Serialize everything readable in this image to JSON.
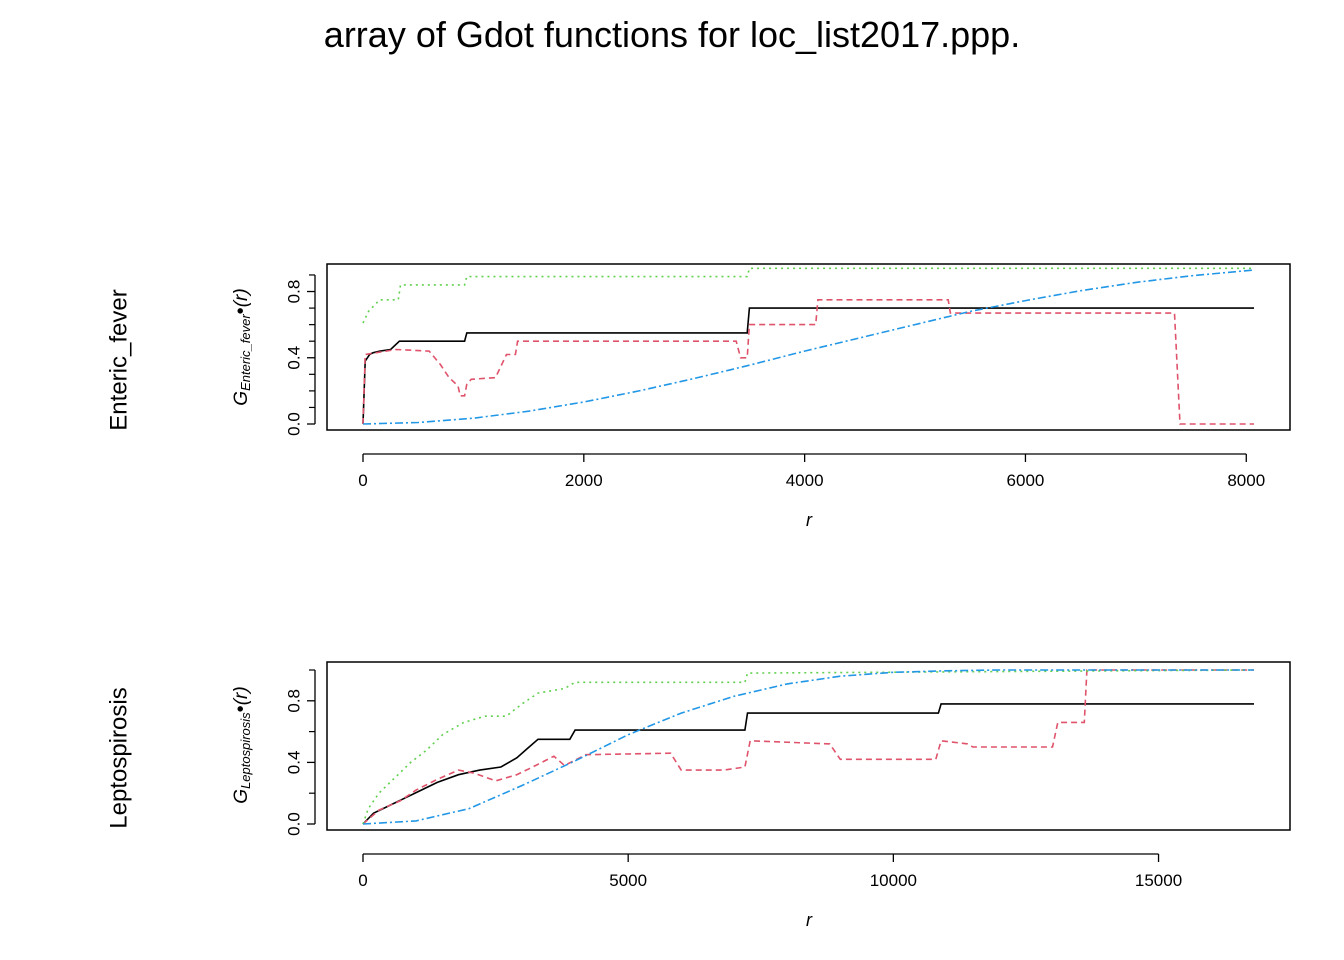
{
  "title": "array of Gdot functions for loc_list2017.ppp.",
  "chart_data": [
    {
      "type": "line",
      "row_label": "Enteric_fever",
      "ylabel": {
        "base": "G",
        "subscript": "Enteric_fever",
        "bullet": "•",
        "arg": "(r)"
      },
      "xlabel": "r",
      "xlim": [
        0,
        8100
      ],
      "ylim": [
        0,
        0.95
      ],
      "xticks": [
        0,
        2000,
        4000,
        6000,
        8000
      ],
      "xtick_labels": [
        "0",
        "2000",
        "4000",
        "6000",
        "8000"
      ],
      "yticks": [
        0,
        0.4,
        0.8
      ],
      "ytick_labels": [
        "0.0",
        "0.4",
        "0.8"
      ],
      "series": [
        {
          "color": "#000000",
          "dash": "",
          "points": [
            [
              0,
              0
            ],
            [
              20,
              0.38
            ],
            [
              60,
              0.42
            ],
            [
              90,
              0.43
            ],
            [
              150,
              0.44
            ],
            [
              250,
              0.45
            ],
            [
              330,
              0.5
            ],
            [
              920,
              0.5
            ],
            [
              940,
              0.55
            ],
            [
              3480,
              0.55
            ],
            [
              3500,
              0.7
            ],
            [
              8070,
              0.7
            ]
          ]
        },
        {
          "color": "#DF536B",
          "dash": "6,4",
          "points": [
            [
              0,
              0
            ],
            [
              20,
              0.42
            ],
            [
              300,
              0.45
            ],
            [
              600,
              0.44
            ],
            [
              700,
              0.36
            ],
            [
              780,
              0.28
            ],
            [
              860,
              0.23
            ],
            [
              880,
              0.17
            ],
            [
              920,
              0.17
            ],
            [
              940,
              0.24
            ],
            [
              980,
              0.27
            ],
            [
              1200,
              0.28
            ],
            [
              1300,
              0.42
            ],
            [
              1380,
              0.42
            ],
            [
              1400,
              0.5
            ],
            [
              3380,
              0.5
            ],
            [
              3420,
              0.4
            ],
            [
              3480,
              0.4
            ],
            [
              3500,
              0.6
            ],
            [
              4100,
              0.6
            ],
            [
              4120,
              0.75
            ],
            [
              5300,
              0.75
            ],
            [
              5320,
              0.67
            ],
            [
              7350,
              0.67
            ],
            [
              7400,
              0.0
            ],
            [
              8070,
              0.0
            ]
          ]
        },
        {
          "color": "#61D04F",
          "dash": "2,4",
          "points": [
            [
              0,
              0.61
            ],
            [
              50,
              0.68
            ],
            [
              150,
              0.75
            ],
            [
              320,
              0.75
            ],
            [
              340,
              0.84
            ],
            [
              920,
              0.84
            ],
            [
              940,
              0.89
            ],
            [
              3480,
              0.89
            ],
            [
              3500,
              0.94
            ],
            [
              8070,
              0.94
            ]
          ]
        },
        {
          "color": "#2297E6",
          "dash": "8,3,2,3",
          "points": [
            [
              0,
              0
            ],
            [
              500,
              0.009
            ],
            [
              1000,
              0.035
            ],
            [
              1500,
              0.077
            ],
            [
              2000,
              0.133
            ],
            [
              2500,
              0.2
            ],
            [
              3000,
              0.275
            ],
            [
              3500,
              0.355
            ],
            [
              4000,
              0.44
            ],
            [
              4500,
              0.52
            ],
            [
              5000,
              0.6
            ],
            [
              5500,
              0.68
            ],
            [
              6000,
              0.745
            ],
            [
              6500,
              0.805
            ],
            [
              7000,
              0.855
            ],
            [
              7500,
              0.895
            ],
            [
              8070,
              0.93
            ]
          ]
        }
      ]
    },
    {
      "type": "line",
      "row_label": "Leptospirosis",
      "ylabel": {
        "base": "G",
        "subscript": "Leptospirosis",
        "bullet": "•",
        "arg": "(r)"
      },
      "xlabel": "r",
      "xlim": [
        0,
        17000
      ],
      "ylim": [
        0,
        1.03
      ],
      "xticks": [
        0,
        5000,
        10000,
        15000
      ],
      "xtick_labels": [
        "0",
        "5000",
        "10000",
        "15000"
      ],
      "yticks": [
        0,
        0.4,
        0.8
      ],
      "ytick_labels": [
        "0.0",
        "0.4",
        "0.8"
      ],
      "series": [
        {
          "color": "#000000",
          "dash": "",
          "points": [
            [
              0,
              0
            ],
            [
              200,
              0.07
            ],
            [
              500,
              0.12
            ],
            [
              800,
              0.17
            ],
            [
              1100,
              0.22
            ],
            [
              1400,
              0.27
            ],
            [
              1800,
              0.32
            ],
            [
              2200,
              0.35
            ],
            [
              2600,
              0.37
            ],
            [
              2900,
              0.43
            ],
            [
              3100,
              0.49
            ],
            [
              3300,
              0.55
            ],
            [
              3900,
              0.55
            ],
            [
              4000,
              0.61
            ],
            [
              7200,
              0.61
            ],
            [
              7250,
              0.72
            ],
            [
              10850,
              0.72
            ],
            [
              10900,
              0.78
            ],
            [
              16800,
              0.78
            ]
          ]
        },
        {
          "color": "#DF536B",
          "dash": "6,4",
          "points": [
            [
              0,
              0
            ],
            [
              300,
              0.09
            ],
            [
              700,
              0.15
            ],
            [
              1000,
              0.22
            ],
            [
              1400,
              0.29
            ],
            [
              1800,
              0.35
            ],
            [
              2100,
              0.33
            ],
            [
              2500,
              0.28
            ],
            [
              2900,
              0.32
            ],
            [
              3200,
              0.37
            ],
            [
              3600,
              0.44
            ],
            [
              3800,
              0.38
            ],
            [
              4200,
              0.45
            ],
            [
              5800,
              0.46
            ],
            [
              6000,
              0.35
            ],
            [
              6800,
              0.35
            ],
            [
              7200,
              0.37
            ],
            [
              7300,
              0.54
            ],
            [
              8800,
              0.52
            ],
            [
              9000,
              0.42
            ],
            [
              10800,
              0.42
            ],
            [
              10900,
              0.54
            ],
            [
              11400,
              0.52
            ],
            [
              11500,
              0.5
            ],
            [
              13000,
              0.5
            ],
            [
              13100,
              0.66
            ],
            [
              13600,
              0.66
            ],
            [
              13650,
              1.0
            ],
            [
              16800,
              1.0
            ]
          ]
        },
        {
          "color": "#61D04F",
          "dash": "2,4",
          "points": [
            [
              0,
              0
            ],
            [
              100,
              0.1
            ],
            [
              300,
              0.2
            ],
            [
              600,
              0.3
            ],
            [
              900,
              0.4
            ],
            [
              1200,
              0.48
            ],
            [
              1500,
              0.58
            ],
            [
              1900,
              0.66
            ],
            [
              2300,
              0.7
            ],
            [
              2700,
              0.7
            ],
            [
              3000,
              0.78
            ],
            [
              3300,
              0.85
            ],
            [
              3800,
              0.88
            ],
            [
              4000,
              0.92
            ],
            [
              7200,
              0.92
            ],
            [
              7250,
              0.98
            ],
            [
              16800,
              1.0
            ]
          ]
        },
        {
          "color": "#2297E6",
          "dash": "8,3,2,3",
          "points": [
            [
              0,
              0
            ],
            [
              1000,
              0.02
            ],
            [
              2000,
              0.1
            ],
            [
              3000,
              0.25
            ],
            [
              4000,
              0.41
            ],
            [
              5000,
              0.58
            ],
            [
              6000,
              0.72
            ],
            [
              7000,
              0.83
            ],
            [
              8000,
              0.91
            ],
            [
              9000,
              0.96
            ],
            [
              10000,
              0.985
            ],
            [
              11000,
              0.995
            ],
            [
              12000,
              1.0
            ],
            [
              16800,
              1.0
            ]
          ]
        }
      ]
    }
  ]
}
